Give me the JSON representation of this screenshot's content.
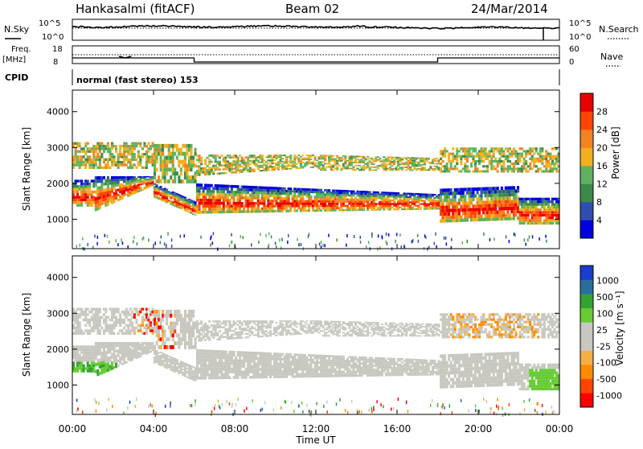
{
  "header": {
    "station": "Hankasalmi (fitACF)",
    "beam": "Beam 02",
    "date": "24/Mar/2014"
  },
  "strips": {
    "nsky_label": "N.Sky",
    "nsearch_label": "N.Search",
    "noise_ticks": [
      "10^5",
      "10^0"
    ],
    "freq_label_top": "Freq.",
    "freq_label_unit": "[MHz]",
    "freq_ticks": [
      "18",
      "8"
    ],
    "nave_label": "Nave",
    "nave_ticks": [
      "60",
      "0"
    ],
    "cpid_label": "CPID",
    "cpid_value": "normal (fast stereo) 153"
  },
  "colors": {
    "power_scale": [
      "#0000e0",
      "#2f4fb0",
      "#3c8a4a",
      "#5eb35e",
      "#f0b020",
      "#f58220",
      "#ff4500",
      "#e80000"
    ],
    "velocity_scale": [
      "#ff0000",
      "#ff4500",
      "#ff8c00",
      "#f5b042",
      "#c8c8c0",
      "#c8c8c0",
      "#66cc33",
      "#33a333",
      "#2a6e9e",
      "#1a3ccf"
    ],
    "ground_scatter": "#c8c8c0"
  },
  "chart_data": [
    {
      "type": "heatmap",
      "name_panel": "power",
      "ylabel": "Slant Range [km]",
      "x_range_hours": [
        0,
        24
      ],
      "ylim": [
        180,
        4600
      ],
      "y_ticks": [
        "1000",
        "2000",
        "3000",
        "4000"
      ],
      "colorbar_label": "Power [dB]",
      "colorbar_ticks": [
        "4",
        "8",
        "12",
        "16",
        "20",
        "24",
        "28"
      ]
    },
    {
      "type": "heatmap",
      "name_panel": "velocity",
      "ylabel": "Slant Range [km]",
      "x_range_hours": [
        0,
        24
      ],
      "ylim": [
        180,
        4600
      ],
      "y_ticks": [
        "1000",
        "2000",
        "3000",
        "4000"
      ],
      "colorbar_label": "Velocity [m s⁻¹]",
      "colorbar_ticks": [
        "1000",
        "500",
        "100",
        "25",
        "-25",
        "-100",
        "-500",
        "-1000"
      ]
    }
  ],
  "x_axis": {
    "ticks": [
      "00:00",
      "04:00",
      "08:00",
      "12:00",
      "16:00",
      "20:00",
      "00:00"
    ],
    "label": "Time UT"
  }
}
